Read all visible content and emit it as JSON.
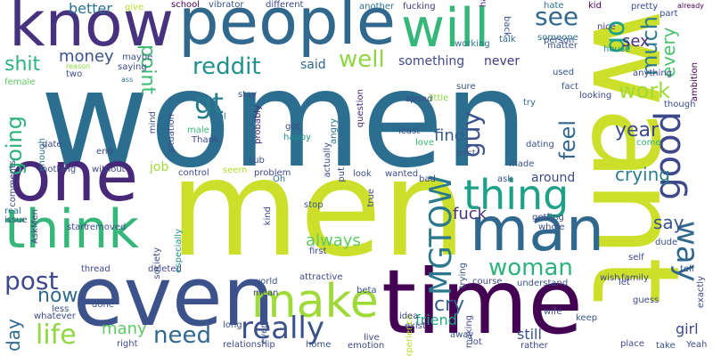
{
  "words": [
    {
      "text": "women",
      "color": "#2c6e8f"
    },
    {
      "text": "want",
      "color": "#ccdf2b"
    },
    {
      "text": "men",
      "color": "#ccdf2b"
    },
    {
      "text": "time",
      "color": "#440154"
    },
    {
      "text": "people",
      "color": "#31688e"
    },
    {
      "text": "even",
      "color": "#3b528b"
    },
    {
      "text": "know",
      "color": "#46327e"
    },
    {
      "text": "one",
      "color": "#482878"
    },
    {
      "text": "man",
      "color": "#31688e"
    },
    {
      "text": "will",
      "color": "#35b779"
    },
    {
      "text": "think",
      "color": "#35b779"
    },
    {
      "text": "make",
      "color": "#a0da39"
    },
    {
      "text": "thing",
      "color": "#1fa187"
    },
    {
      "text": "way",
      "color": "#31688e"
    },
    {
      "text": "good",
      "color": "#3e4989"
    },
    {
      "text": "really",
      "color": "#3b528b"
    },
    {
      "text": "post",
      "color": "#3e4989"
    },
    {
      "text": "life",
      "color": "#90d743"
    },
    {
      "text": "MGTOW",
      "color": "#2a788e"
    },
    {
      "text": "woman",
      "color": "#2db27d"
    },
    {
      "text": "see",
      "color": "#31688e"
    },
    {
      "text": "go",
      "color": "#1fa187"
    },
    {
      "text": "work",
      "color": "#a0da39"
    },
    {
      "text": "much",
      "color": "#2c7e8e"
    },
    {
      "text": "every",
      "color": "#4ac16d"
    },
    {
      "text": "gt",
      "color": "#277f8e"
    },
    {
      "text": "going",
      "color": "#2db27d"
    },
    {
      "text": "shit",
      "color": "#2db27d"
    },
    {
      "text": "money",
      "color": "#3b528b"
    },
    {
      "text": "point",
      "color": "#3fbc73"
    },
    {
      "text": "reddit",
      "color": "#21918c"
    },
    {
      "text": "well",
      "color": "#90d743"
    },
    {
      "text": "said",
      "color": "#31688e"
    },
    {
      "text": "something",
      "color": "#3e4989"
    },
    {
      "text": "never",
      "color": "#443983"
    },
    {
      "text": "guy",
      "color": "#3b528b"
    },
    {
      "text": "feel",
      "color": "#31688e"
    },
    {
      "text": "year",
      "color": "#3e4989"
    },
    {
      "text": "sex",
      "color": "#472d7b"
    },
    {
      "text": "find",
      "color": "#355f8d"
    },
    {
      "text": "crying",
      "color": "#2c7e8e"
    },
    {
      "text": "say",
      "color": "#3b528b"
    },
    {
      "text": "always",
      "color": "#5ec962"
    },
    {
      "text": "fuck",
      "color": "#46327e"
    },
    {
      "text": "cry",
      "color": "#355f8d"
    },
    {
      "text": "need",
      "color": "#31688e"
    },
    {
      "text": "now",
      "color": "#31688e"
    },
    {
      "text": "day",
      "color": "#31688e"
    },
    {
      "text": "many",
      "color": "#5ec962"
    },
    {
      "text": "friend",
      "color": "#22a884"
    },
    {
      "text": "still",
      "color": "#3b528b"
    },
    {
      "text": "girl",
      "color": "#3e4989"
    },
    {
      "text": "around",
      "color": "#3e4989"
    },
    {
      "text": "better",
      "color": "#2c728e"
    },
    {
      "text": "give",
      "color": "#b5de2b"
    },
    {
      "text": "school",
      "color": "#440154"
    },
    {
      "text": "vibrator",
      "color": "#39568c"
    },
    {
      "text": "different",
      "color": "#3e4989"
    },
    {
      "text": "another",
      "color": "#2c728e"
    },
    {
      "text": "fucking",
      "color": "#443983"
    },
    {
      "text": "hate",
      "color": "#2c728e"
    },
    {
      "text": "kid",
      "color": "#440154"
    },
    {
      "text": "pretty",
      "color": "#3e4989"
    },
    {
      "text": "already",
      "color": "#440154"
    },
    {
      "text": "reason",
      "color": "#90d743"
    },
    {
      "text": "maybe",
      "color": "#3b528b"
    },
    {
      "text": "saying",
      "color": "#3e4989"
    },
    {
      "text": "two",
      "color": "#3e4989"
    },
    {
      "text": "ass",
      "color": "#2c728e"
    },
    {
      "text": "female",
      "color": "#5ec962"
    },
    {
      "text": "comments",
      "color": "#3e4989"
    },
    {
      "text": "enough",
      "color": "#2c728e"
    },
    {
      "text": "hard",
      "color": "#482878"
    },
    {
      "text": "working",
      "color": "#2c728e"
    },
    {
      "text": "back",
      "color": "#3b528b"
    },
    {
      "text": "talk",
      "color": "#31688e"
    },
    {
      "text": "someone",
      "color": "#2c728e"
    },
    {
      "text": "person",
      "color": "#3b528b"
    },
    {
      "text": "nice",
      "color": "#443983"
    },
    {
      "text": "matter",
      "color": "#3b528b"
    },
    {
      "text": "part",
      "color": "#3e4989"
    },
    {
      "text": "ambition",
      "color": "#440154"
    },
    {
      "text": "house",
      "color": "#21918c"
    },
    {
      "text": "used",
      "color": "#3b528b"
    },
    {
      "text": "anything",
      "color": "#3e4989"
    },
    {
      "text": "fact",
      "color": "#3b528b"
    },
    {
      "text": "looking",
      "color": "#3e4989"
    },
    {
      "text": "though",
      "color": "#3b528b"
    },
    {
      "text": "lol",
      "color": "#2c728e"
    },
    {
      "text": "Thank",
      "color": "#3e4989"
    },
    {
      "text": "male",
      "color": "#35b779"
    },
    {
      "text": "mind",
      "color": "#3b528b"
    },
    {
      "text": "probably",
      "color": "#482878"
    },
    {
      "text": "got",
      "color": "#3e4989"
    },
    {
      "text": "happy",
      "color": "#21918c"
    },
    {
      "text": "angry",
      "color": "#2c728e"
    },
    {
      "text": "actually",
      "color": "#3e4989"
    },
    {
      "text": "question",
      "color": "#482878"
    },
    {
      "text": "least",
      "color": "#3b528b"
    },
    {
      "text": "spend",
      "color": "#3e4989"
    },
    {
      "text": "love",
      "color": "#35b779"
    },
    {
      "text": "little",
      "color": "#90d743"
    },
    {
      "text": "sure",
      "color": "#3b528b"
    },
    {
      "text": "try",
      "color": "#31688e"
    },
    {
      "text": "dating",
      "color": "#3b528b"
    },
    {
      "text": "made",
      "color": "#3b528b"
    },
    {
      "text": "come",
      "color": "#35b779"
    },
    {
      "text": "best",
      "color": "#3b528b"
    },
    {
      "text": "end",
      "color": "#3e4989"
    },
    {
      "text": "date",
      "color": "#3e4989"
    },
    {
      "text": "nothing",
      "color": "#3e4989"
    },
    {
      "text": "without",
      "color": "#3e4989"
    },
    {
      "text": "job",
      "color": "#a0da39"
    },
    {
      "text": "seem",
      "color": "#b5de2b"
    },
    {
      "text": "sub",
      "color": "#3b528b"
    },
    {
      "text": "control",
      "color": "#3e4989"
    },
    {
      "text": "problem",
      "color": "#3e4989"
    },
    {
      "text": "Oh",
      "color": "#2c728e"
    },
    {
      "text": "look",
      "color": "#3b528b"
    },
    {
      "text": "wanted",
      "color": "#3e4989"
    },
    {
      "text": "put",
      "color": "#3e4989"
    },
    {
      "text": "true",
      "color": "#3e4989"
    },
    {
      "text": "bad",
      "color": "#3e4989"
    },
    {
      "text": "ask",
      "color": "#3b528b"
    },
    {
      "text": "AskMen",
      "color": "#3e4989"
    },
    {
      "text": "real",
      "color": "#2c728e"
    },
    {
      "text": "issue",
      "color": "#3b528b"
    },
    {
      "text": "start",
      "color": "#3e4989"
    },
    {
      "text": "removed",
      "color": "#3b528b"
    },
    {
      "text": "society",
      "color": "#3e4989"
    },
    {
      "text": "especially",
      "color": "#21918c"
    },
    {
      "text": "kind",
      "color": "#3e4989"
    },
    {
      "text": "stop",
      "color": "#3b528b"
    },
    {
      "text": "first",
      "color": "#3e4989"
    },
    {
      "text": "getting",
      "color": "#3e4989"
    },
    {
      "text": "whole",
      "color": "#3b528b"
    },
    {
      "text": "dude",
      "color": "#3b528b"
    },
    {
      "text": "tell",
      "color": "#3b528b"
    },
    {
      "text": "thread",
      "color": "#3e4989"
    },
    {
      "text": "deleted",
      "color": "#3e4989"
    },
    {
      "text": "everyone",
      "color": "#3b528b"
    },
    {
      "text": "attractive",
      "color": "#3e4989"
    },
    {
      "text": "experience",
      "color": "#b5de2b"
    },
    {
      "text": "trying",
      "color": "#3b528b"
    },
    {
      "text": "self",
      "color": "#3e4989"
    },
    {
      "text": "wish",
      "color": "#3e4989"
    },
    {
      "text": "family",
      "color": "#3e4989"
    },
    {
      "text": "understand",
      "color": "#3b528b"
    },
    {
      "text": "course",
      "color": "#3e4989"
    },
    {
      "text": "let",
      "color": "#3e4989"
    },
    {
      "text": "guess",
      "color": "#3e4989"
    },
    {
      "text": "exactly",
      "color": "#3e4989"
    },
    {
      "text": "whatever",
      "color": "#3e4989"
    },
    {
      "text": "less",
      "color": "#3b528b"
    },
    {
      "text": "done",
      "color": "#3b528b"
    },
    {
      "text": "mean",
      "color": "#3e4989"
    },
    {
      "text": "world",
      "color": "#3b528b"
    },
    {
      "text": "idea",
      "color": "#3e4989"
    },
    {
      "text": "making",
      "color": "#3e4989"
    },
    {
      "text": "beta",
      "color": "#3b528b"
    },
    {
      "text": "exist",
      "color": "#3e4989"
    },
    {
      "text": "wife",
      "color": "#3e4989"
    },
    {
      "text": "keep",
      "color": "#3b528b"
    },
    {
      "text": "right",
      "color": "#3e4989"
    },
    {
      "text": "long",
      "color": "#3b528b"
    },
    {
      "text": "relationship",
      "color": "#3e4989"
    },
    {
      "text": "home",
      "color": "#3b528b"
    },
    {
      "text": "emotion",
      "color": "#3e4989"
    },
    {
      "text": "live",
      "color": "#3e4989"
    },
    {
      "text": "away",
      "color": "#3b528b"
    },
    {
      "text": "lot",
      "color": "#3e4989"
    },
    {
      "text": "rather",
      "color": "#3e4989"
    },
    {
      "text": "place",
      "color": "#3e4989"
    },
    {
      "text": "take",
      "color": "#3b528b"
    },
    {
      "text": "Yeah",
      "color": "#3e4989"
    },
    {
      "text": "stay",
      "color": "#3b528b"
    },
    {
      "text": "situation",
      "color": "#3e4989"
    }
  ]
}
